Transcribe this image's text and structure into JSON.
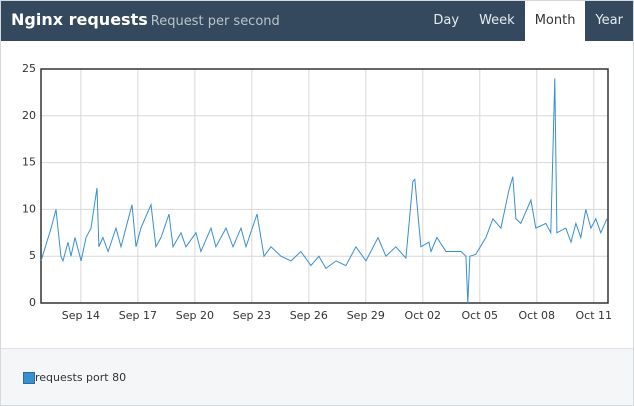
{
  "header": {
    "title": "Nginx requests",
    "subtitle": "Request per second",
    "tabs": [
      {
        "label": "Day",
        "selected": false
      },
      {
        "label": "Week",
        "selected": false
      },
      {
        "label": "Month",
        "selected": true
      },
      {
        "label": "Year",
        "selected": false
      }
    ]
  },
  "chart_data": {
    "type": "line",
    "x": [
      11.9,
      12.43,
      12.69,
      12.95,
      13.06,
      13.32,
      13.48,
      13.69,
      14.01,
      14.27,
      14.53,
      14.85,
      14.95,
      15.16,
      15.43,
      15.85,
      16.11,
      16.69,
      16.9,
      17.16,
      17.69,
      17.95,
      18.22,
      18.64,
      18.85,
      19.27,
      19.53,
      20.06,
      20.32,
      20.85,
      21.11,
      21.64,
      22.01,
      22.43,
      22.69,
      23.27,
      23.64,
      24.01,
      24.53,
      25.06,
      25.58,
      26.11,
      26.53,
      26.9,
      27.43,
      27.95,
      28.48,
      29.01,
      29.64,
      30.06,
      30.58,
      31.11,
      31.48,
      31.58,
      31.9,
      32.32,
      32.43,
      32.74,
      33.22,
      34.01,
      34.27,
      34.37,
      34.48,
      34.79,
      35.32,
      35.69,
      36.11,
      36.53,
      36.74,
      36.9,
      37.16,
      37.69,
      37.95,
      38.48,
      38.74,
      38.95,
      39.06,
      39.53,
      39.8,
      40.06,
      40.32,
      40.58,
      40.85,
      41.11,
      41.37,
      41.69
    ],
    "series": [
      {
        "name": "requests port 80",
        "color": "#3a8fd0",
        "values": [
          4.5,
          8,
          10,
          5,
          4.5,
          6.5,
          5,
          7,
          4.5,
          7,
          8,
          12.3,
          6,
          7,
          5.5,
          8,
          6,
          10.5,
          6,
          8,
          10.5,
          6,
          7,
          9.5,
          6,
          7.5,
          6,
          7.5,
          5.5,
          8,
          6,
          8,
          6,
          8,
          6,
          9.5,
          5,
          6,
          5,
          4.5,
          5.5,
          4,
          5,
          3.7,
          4.5,
          4,
          6,
          4.5,
          7,
          5,
          6,
          4.8,
          13,
          13.2,
          6,
          6.5,
          5.5,
          7,
          5.5,
          5.5,
          5,
          0,
          5,
          5.2,
          7,
          9,
          8,
          12,
          13.5,
          9,
          8.5,
          11,
          8,
          8.5,
          7.5,
          24,
          7.5,
          8,
          6.5,
          8.5,
          7,
          10,
          8,
          9,
          7.5,
          9
        ]
      }
    ],
    "xlim": [
      11.9,
      41.75
    ],
    "xticks": [
      {
        "value": 14,
        "label": "Sep 14"
      },
      {
        "value": 17,
        "label": "Sep 17"
      },
      {
        "value": 20,
        "label": "Sep 20"
      },
      {
        "value": 23,
        "label": "Sep 23"
      },
      {
        "value": 26,
        "label": "Sep 26"
      },
      {
        "value": 29,
        "label": "Sep 29"
      },
      {
        "value": 32,
        "label": "Oct 02"
      },
      {
        "value": 35,
        "label": "Oct 05"
      },
      {
        "value": 38,
        "label": "Oct 08"
      },
      {
        "value": 41,
        "label": "Oct 11"
      }
    ],
    "ylim": [
      0,
      25
    ],
    "yticks": [
      0,
      5,
      10,
      15,
      20,
      25
    ],
    "grid": true
  }
}
